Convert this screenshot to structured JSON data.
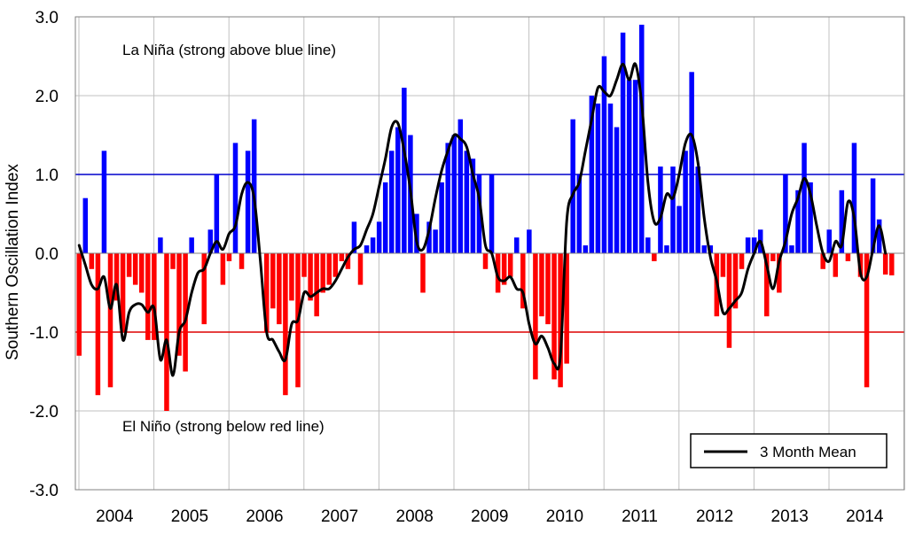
{
  "chart_data": {
    "type": "bar",
    "title": "",
    "xlabel": "",
    "ylabel": "Southern Oscillation Index",
    "ylim": [
      -3.0,
      3.0
    ],
    "y_ticks": [
      "3.0",
      "2.0",
      "1.0",
      "0.0",
      "-1.0",
      "-2.0",
      "-3.0"
    ],
    "x_labels": [
      "2004",
      "2005",
      "2006",
      "2007",
      "2008",
      "2009",
      "2010",
      "2011",
      "2012",
      "2013",
      "2014"
    ],
    "x_start_year": 2004,
    "x_end_year": 2014,
    "grid": true,
    "positive_color": "#0000ff",
    "negative_color": "#ff0000",
    "mean_color": "#000000",
    "thresholds": [
      {
        "value": 1.0,
        "color": "#0000cc"
      },
      {
        "value": -1.0,
        "color": "#dd0000"
      }
    ],
    "annotations": [
      {
        "text": "La Niña (strong above blue line)",
        "x": "2005-06",
        "y": 2.6
      },
      {
        "text": "El Niño (strong below red line)",
        "x": "2005-06",
        "y": -2.2
      }
    ],
    "legend": {
      "label": "3 Month Mean",
      "position": "bottom-right"
    },
    "series": [
      {
        "name": "Monthly SOI",
        "type": "bar",
        "start": "2003-08",
        "values": [
          -1.3,
          0.7,
          -0.2,
          -1.8,
          1.3,
          -1.7,
          -0.6,
          -1.0,
          -0.3,
          -0.4,
          -0.5,
          -1.1,
          -1.1,
          0.2,
          -2.0,
          -0.2,
          -1.3,
          -1.5,
          0.2,
          0.0,
          -0.9,
          0.3,
          1.0,
          -0.4,
          -0.1,
          1.4,
          -0.2,
          1.3,
          1.7,
          0.0,
          -1.0,
          -0.7,
          -0.9,
          -1.8,
          -0.6,
          -1.7,
          -0.3,
          -0.6,
          -0.8,
          -0.5,
          -0.4,
          -0.3,
          -0.1,
          -0.2,
          0.4,
          -0.4,
          0.1,
          0.2,
          0.4,
          0.9,
          1.3,
          1.6,
          2.1,
          1.5,
          0.5,
          -0.5,
          0.4,
          0.3,
          0.9,
          1.4,
          1.5,
          1.7,
          1.3,
          1.2,
          1.0,
          -0.2,
          1.0,
          -0.5,
          -0.4,
          -0.3,
          0.2,
          -0.7,
          0.3,
          -1.6,
          -0.8,
          -0.9,
          -1.6,
          -1.7,
          -1.4,
          1.7,
          1.0,
          0.1,
          2.0,
          1.9,
          2.5,
          1.9,
          1.6,
          2.8,
          2.2,
          2.2,
          2.9,
          0.2,
          -0.1,
          1.1,
          0.1,
          1.1,
          0.6,
          1.3,
          2.3,
          1.1,
          0.1,
          0.1,
          -0.8,
          -0.3,
          -1.2,
          -0.7,
          -0.2,
          0.2,
          0.2,
          0.3,
          -0.8,
          -0.1,
          -0.5,
          1.0,
          0.1,
          0.8,
          1.4,
          0.9,
          0.0,
          -0.2,
          0.3,
          -0.3,
          0.8,
          -0.1,
          1.4,
          -0.3,
          -1.7,
          0.95,
          0.43,
          -0.27,
          -0.28
        ]
      },
      {
        "name": "3 Month Mean",
        "type": "line",
        "start": "2003-08",
        "values": [
          0.1,
          -0.15,
          -0.4,
          -0.45,
          -0.3,
          -0.7,
          -0.4,
          -1.1,
          -0.75,
          -0.65,
          -0.65,
          -0.75,
          -0.7,
          -1.35,
          -1.1,
          -1.55,
          -1.0,
          -0.85,
          -0.5,
          -0.25,
          -0.2,
          0.0,
          0.15,
          0.05,
          0.25,
          0.35,
          0.75,
          0.9,
          0.7,
          -0.1,
          -1.0,
          -1.1,
          -1.25,
          -1.35,
          -0.9,
          -0.85,
          -0.5,
          -0.55,
          -0.5,
          -0.45,
          -0.45,
          -0.35,
          -0.2,
          -0.05,
          0.05,
          0.1,
          0.3,
          0.5,
          0.85,
          1.2,
          1.6,
          1.65,
          1.3,
          0.8,
          0.15,
          0.05,
          0.3,
          0.7,
          1.05,
          1.3,
          1.5,
          1.45,
          1.35,
          1.0,
          0.7,
          0.1,
          0.0,
          -0.3,
          -0.35,
          -0.3,
          -0.45,
          -0.5,
          -0.9,
          -1.15,
          -1.05,
          -1.2,
          -1.4,
          -1.3,
          0.4,
          0.75,
          0.9,
          1.3,
          1.7,
          2.1,
          2.05,
          2.0,
          2.2,
          2.4,
          2.2,
          2.4,
          1.9,
          0.9,
          0.4,
          0.45,
          0.75,
          0.7,
          1.0,
          1.4,
          1.5,
          1.15,
          0.45,
          -0.05,
          -0.35,
          -0.75,
          -0.7,
          -0.6,
          -0.5,
          -0.2,
          0.0,
          0.15,
          -0.15,
          -0.45,
          -0.1,
          0.15,
          0.5,
          0.7,
          0.95,
          0.75,
          0.35,
          0.0,
          -0.1,
          0.15,
          0.1,
          0.65,
          0.45,
          -0.25,
          -0.3,
          0.05,
          0.35,
          0.0
        ]
      }
    ]
  }
}
